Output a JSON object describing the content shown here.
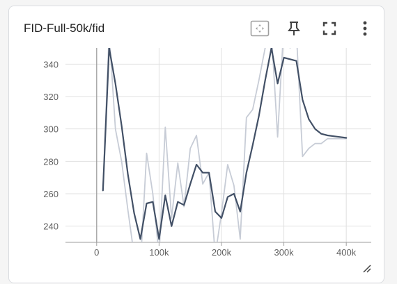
{
  "card": {
    "title": "FID-Full-50k/fid",
    "toolbar": [
      {
        "name": "fit-domain-button",
        "icon": "fit-to-data-icon"
      },
      {
        "name": "pin-button",
        "icon": "pin-icon"
      },
      {
        "name": "fullscreen-button",
        "icon": "fullscreen-icon"
      },
      {
        "name": "more-options-button",
        "icon": "more-vert-icon"
      }
    ]
  },
  "colors": {
    "smoothed": "#425066",
    "raw": "#c7ccd6",
    "grid": "#e0e0e0",
    "axis_text": "#616161"
  },
  "chart_data": {
    "type": "line",
    "title": "",
    "xlabel": "",
    "ylabel": "",
    "xlim": [
      -50000,
      440000
    ],
    "ylim": [
      230,
      350
    ],
    "x_ticks": [
      0,
      100000,
      200000,
      300000,
      400000
    ],
    "x_tick_labels": [
      "0",
      "100k",
      "200k",
      "300k",
      "400k"
    ],
    "y_ticks": [
      240,
      260,
      280,
      300,
      320,
      340
    ],
    "y_tick_labels": [
      "240",
      "260",
      "280",
      "300",
      "320",
      "340"
    ],
    "grid": true,
    "series": [
      {
        "kind": "raw",
        "x": [
          10000,
          20000,
          30000,
          40000,
          50000,
          60000,
          70000,
          80000,
          90000,
          100000,
          110000,
          120000,
          130000,
          140000,
          150000,
          160000,
          170000,
          180000,
          190000,
          200000,
          210000,
          220000,
          230000,
          240000,
          250000,
          260000,
          270000,
          280000,
          290000,
          300000,
          310000,
          320000,
          330000,
          340000,
          350000,
          360000,
          370000,
          380000,
          390000,
          400000
        ],
        "values": [
          262,
          360,
          300,
          280,
          250,
          222,
          215,
          285,
          260,
          222,
          301,
          245,
          279,
          252,
          288,
          296,
          266,
          273,
          222,
          248,
          278,
          265,
          232,
          307,
          312,
          330,
          350,
          360,
          295,
          365,
          350,
          360,
          283,
          288,
          291,
          291,
          294,
          294,
          294,
          294
        ]
      },
      {
        "kind": "smoothed",
        "x": [
          10000,
          20000,
          30000,
          40000,
          50000,
          60000,
          70000,
          80000,
          90000,
          100000,
          110000,
          120000,
          130000,
          140000,
          150000,
          160000,
          170000,
          180000,
          190000,
          200000,
          210000,
          220000,
          230000,
          240000,
          250000,
          260000,
          270000,
          280000,
          290000,
          300000,
          310000,
          320000,
          330000,
          340000,
          350000,
          360000,
          370000,
          380000,
          390000,
          400000
        ],
        "values": [
          262,
          350,
          328,
          302,
          272,
          248,
          232,
          254,
          255,
          232,
          259,
          240,
          255,
          253,
          266,
          278,
          273,
          273,
          249,
          245,
          258,
          260,
          249,
          273,
          290,
          308,
          330,
          350,
          328,
          344,
          343,
          342,
          318,
          306,
          300,
          297,
          296,
          295.5,
          295,
          294.5
        ]
      }
    ]
  }
}
